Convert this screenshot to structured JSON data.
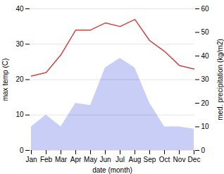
{
  "chart_data": {
    "type": "line",
    "categories": [
      "Jan",
      "Feb",
      "Mar",
      "Apr",
      "May",
      "Jun",
      "Jul",
      "Aug",
      "Sep",
      "Oct",
      "Nov",
      "Dec"
    ],
    "xlabel": "date (month)",
    "ylabel": "max temp (C)",
    "y2label": "med. precipitation (kg/m2)",
    "series": [
      {
        "type": "area",
        "axis": "y2",
        "color": "#c8cef5",
        "values": [
          10,
          15,
          10,
          20,
          19,
          35,
          39,
          35,
          20,
          10,
          10,
          9
        ]
      },
      {
        "type": "line",
        "color": "#cc4444",
        "values": [
          21,
          22,
          27,
          34,
          34,
          36,
          35,
          37,
          31,
          28,
          24,
          23
        ]
      }
    ],
    "ylim": [
      0,
      40
    ],
    "yticks": [
      0,
      10,
      20,
      30,
      40
    ],
    "y2lim": [
      0,
      60
    ],
    "y2ticks": [
      0,
      10,
      20,
      30,
      40,
      50,
      60
    ],
    "grid": true
  }
}
